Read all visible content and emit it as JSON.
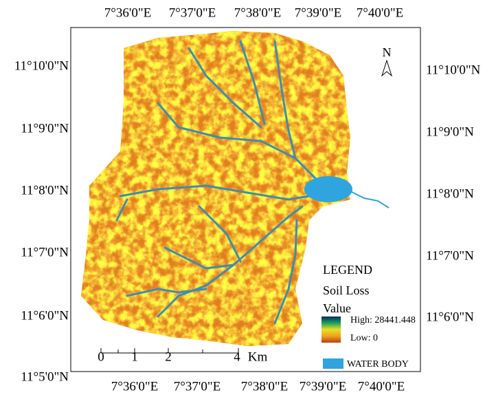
{
  "top_labels": [
    "7°36'0\"E",
    "7°37'0\"E",
    "7°38'0\"E",
    "7°39'0\"E",
    "7°40'0\"E"
  ],
  "bottom_labels": [
    "7°36'0\"E",
    "7°37'0\"E",
    "7°38'0\"E",
    "7°39'0\"E",
    "7°40'0\"E"
  ],
  "left_labels": [
    "11°10'0\"N",
    "11°9'0\"N",
    "11°8'0\"N",
    "11°7'0\"N",
    "11°6'0\"N",
    "11°5'0\"N"
  ],
  "right_labels": [
    "11°10'0\"N",
    "11°9'0\"N",
    "11°8'0\"N",
    "11°7'0\"N",
    "11°6'0\"N"
  ],
  "north": "N",
  "legend": {
    "title": "LEGEND",
    "layer": "Soil Loss",
    "field": "Value",
    "high": "High: 28441.448",
    "low": "Low: 0",
    "water": "WATER BODY"
  },
  "scale": {
    "ticks": [
      "0",
      "1",
      "2",
      "4"
    ],
    "unit": "Km"
  }
}
